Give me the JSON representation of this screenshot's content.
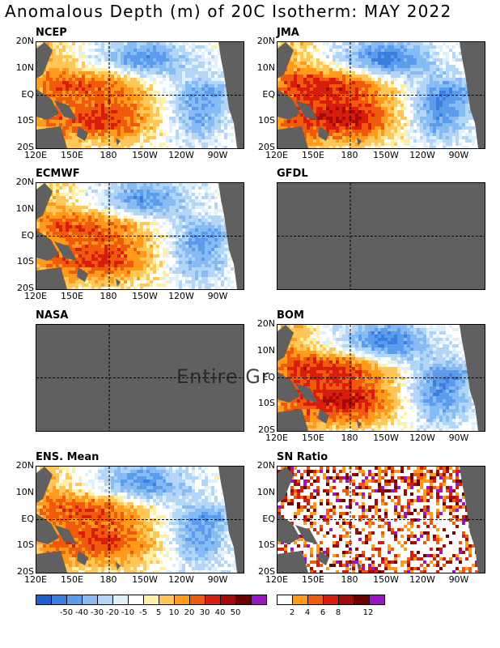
{
  "title": "Anomalous Depth (m) of 20C Isotherm: MAY 2022",
  "lat_labels": [
    "20N",
    "10N",
    "EQ",
    "10S",
    "20S"
  ],
  "lon_labels": [
    "120E",
    "150E",
    "180",
    "150W",
    "120W",
    "90W"
  ],
  "overlay_text": "Entire Gr",
  "panels": [
    {
      "id": "ncep",
      "label": "NCEP",
      "available": true
    },
    {
      "id": "jma",
      "label": "JMA",
      "available": true
    },
    {
      "id": "ecmwf",
      "label": "ECMWF",
      "available": true
    },
    {
      "id": "gfdl",
      "label": "GFDL",
      "available": false
    },
    {
      "id": "nasa",
      "label": "NASA",
      "available": false
    },
    {
      "id": "bom",
      "label": "BOM",
      "available": true
    },
    {
      "id": "ens",
      "label": "ENS. Mean",
      "available": true
    },
    {
      "id": "sn",
      "label": "SN Ratio",
      "available": true
    }
  ],
  "depth_colorbar": {
    "ticks": [
      "-50",
      "-40",
      "-30",
      "-20",
      "-10",
      "-5",
      "5",
      "10",
      "20",
      "30",
      "40",
      "50"
    ],
    "colors": [
      "#1e5fd0",
      "#3a7fe0",
      "#5b9ced",
      "#86bbf3",
      "#b3d6f8",
      "#dff0fd",
      "#ffffff",
      "#fff0a8",
      "#ffc65a",
      "#ff9a1a",
      "#f05a0c",
      "#d81e0a",
      "#a30a08",
      "#6e0000",
      "#9a14c8"
    ]
  },
  "sn_colorbar": {
    "ticks": [
      "2",
      "4",
      "6",
      "8",
      "12"
    ],
    "colors": [
      "#ffffff",
      "#ff9a1a",
      "#f05a0c",
      "#d81e0a",
      "#a30a08",
      "#6e0000",
      "#9a14c8"
    ]
  },
  "land_color": "#606060"
}
